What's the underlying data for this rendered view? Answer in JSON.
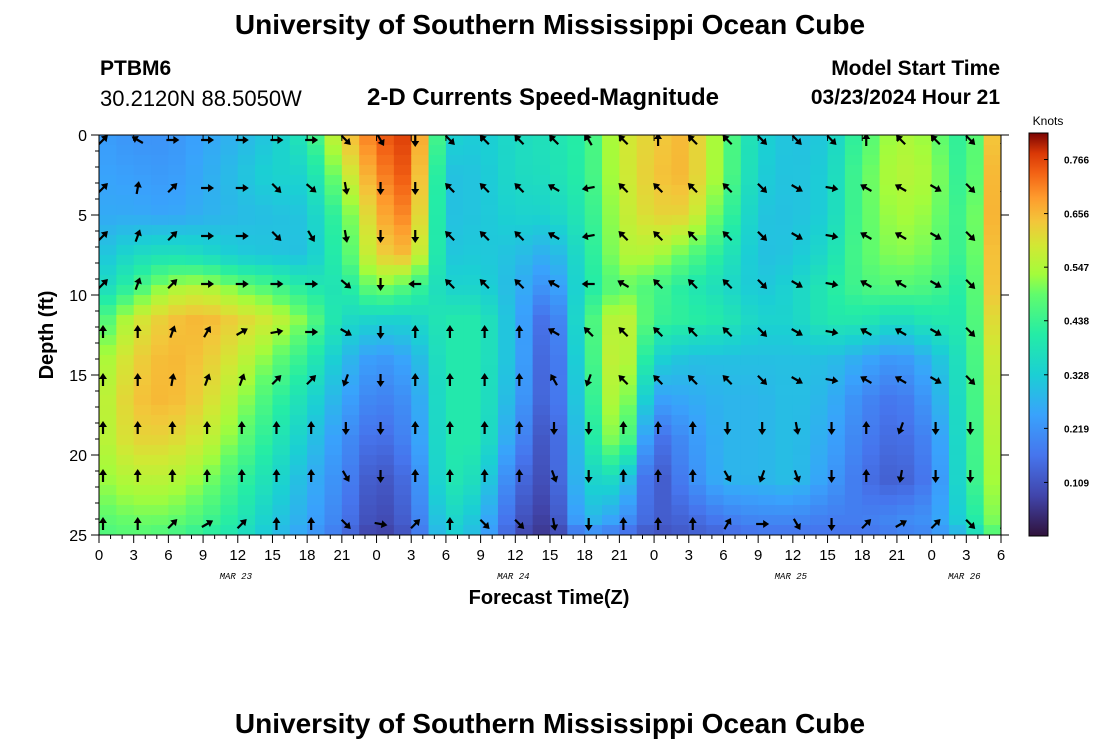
{
  "header": {
    "title": "University of Southern Mississippi Ocean Cube",
    "station": "PTBM6",
    "coordinates": "30.2120N  88.5050W",
    "subtitle": "2-D Currents Speed-Magnitude",
    "model_start_label": "Model Start Time",
    "model_start_value": "03/23/2024 Hour 21"
  },
  "footer": {
    "title": "University of Southern Mississippi Ocean Cube"
  },
  "chart_data": {
    "type": "heatmap",
    "title": "2-D Currents Speed-Magnitude",
    "xlabel": "Forecast Time(Z)",
    "ylabel": "Depth (ft)",
    "x_ticks": [
      "0",
      "3",
      "6",
      "9",
      "12",
      "15",
      "18",
      "21",
      "0",
      "3",
      "6",
      "9",
      "12",
      "15",
      "18",
      "21",
      "0",
      "3",
      "6",
      "9",
      "12",
      "15",
      "18",
      "21",
      "0",
      "3",
      "6"
    ],
    "x_range_hours": [
      0,
      78
    ],
    "date_labels": [
      {
        "label": "MAR 23",
        "hour": 12
      },
      {
        "label": "MAR 24",
        "hour": 36
      },
      {
        "label": "MAR 25",
        "hour": 60
      },
      {
        "label": "MAR 26",
        "hour": 75
      }
    ],
    "y_ticks": [
      0,
      5,
      10,
      15,
      20,
      25
    ],
    "ylim": [
      0,
      25
    ],
    "colorbar": {
      "unit": "Knots",
      "range": [
        0.0,
        0.82
      ],
      "ticks": [
        "0.766",
        "0.656",
        "0.547",
        "0.438",
        "0.328",
        "0.219",
        "0.109"
      ],
      "tick_values": [
        0.766,
        0.656,
        0.547,
        0.438,
        0.328,
        0.219,
        0.109
      ]
    },
    "speed_field": {
      "note": "Speed magnitude (knots) sampled every 3 hours (cols, hour 0..78) and at depth ft (rows)",
      "depths": [
        0,
        2.5,
        5,
        7.5,
        9.5,
        11.5,
        14,
        16.5,
        19,
        21.5,
        24,
        25
      ],
      "hours": [
        0,
        3,
        6,
        9,
        12,
        15,
        18,
        21,
        24,
        27,
        30,
        33,
        36,
        39,
        42,
        45,
        48,
        51,
        54,
        57,
        60,
        63,
        66,
        69,
        72,
        75,
        78
      ],
      "values": [
        [
          0.24,
          0.22,
          0.22,
          0.25,
          0.28,
          0.32,
          0.4,
          0.62,
          0.74,
          0.78,
          0.34,
          0.32,
          0.36,
          0.38,
          0.42,
          0.58,
          0.63,
          0.66,
          0.5,
          0.34,
          0.3,
          0.32,
          0.46,
          0.55,
          0.52,
          0.4,
          0.72
        ],
        [
          0.25,
          0.24,
          0.23,
          0.26,
          0.3,
          0.34,
          0.34,
          0.55,
          0.7,
          0.76,
          0.3,
          0.31,
          0.36,
          0.37,
          0.42,
          0.57,
          0.64,
          0.66,
          0.5,
          0.33,
          0.3,
          0.33,
          0.48,
          0.56,
          0.54,
          0.4,
          0.74
        ],
        [
          0.26,
          0.26,
          0.25,
          0.27,
          0.29,
          0.3,
          0.31,
          0.46,
          0.66,
          0.72,
          0.3,
          0.31,
          0.34,
          0.34,
          0.4,
          0.56,
          0.62,
          0.62,
          0.46,
          0.31,
          0.3,
          0.33,
          0.48,
          0.54,
          0.52,
          0.42,
          0.74
        ],
        [
          0.3,
          0.36,
          0.38,
          0.36,
          0.32,
          0.31,
          0.3,
          0.44,
          0.62,
          0.66,
          0.31,
          0.32,
          0.3,
          0.26,
          0.38,
          0.55,
          0.55,
          0.48,
          0.4,
          0.3,
          0.31,
          0.36,
          0.48,
          0.52,
          0.5,
          0.42,
          0.72
        ],
        [
          0.34,
          0.44,
          0.54,
          0.56,
          0.5,
          0.46,
          0.4,
          0.38,
          0.52,
          0.46,
          0.34,
          0.34,
          0.28,
          0.2,
          0.38,
          0.5,
          0.46,
          0.4,
          0.36,
          0.31,
          0.34,
          0.4,
          0.46,
          0.48,
          0.46,
          0.4,
          0.72
        ],
        [
          0.44,
          0.58,
          0.64,
          0.66,
          0.62,
          0.58,
          0.5,
          0.36,
          0.34,
          0.34,
          0.4,
          0.4,
          0.28,
          0.12,
          0.42,
          0.6,
          0.44,
          0.42,
          0.4,
          0.34,
          0.34,
          0.4,
          0.4,
          0.36,
          0.4,
          0.4,
          0.68
        ],
        [
          0.52,
          0.62,
          0.66,
          0.64,
          0.58,
          0.5,
          0.42,
          0.3,
          0.22,
          0.26,
          0.4,
          0.4,
          0.28,
          0.1,
          0.4,
          0.62,
          0.34,
          0.3,
          0.3,
          0.3,
          0.3,
          0.3,
          0.26,
          0.22,
          0.28,
          0.4,
          0.64
        ],
        [
          0.54,
          0.64,
          0.66,
          0.62,
          0.54,
          0.44,
          0.36,
          0.26,
          0.18,
          0.22,
          0.4,
          0.4,
          0.26,
          0.1,
          0.38,
          0.6,
          0.24,
          0.26,
          0.28,
          0.28,
          0.3,
          0.28,
          0.2,
          0.16,
          0.24,
          0.4,
          0.62
        ],
        [
          0.54,
          0.62,
          0.62,
          0.58,
          0.5,
          0.4,
          0.32,
          0.22,
          0.14,
          0.2,
          0.4,
          0.4,
          0.22,
          0.08,
          0.36,
          0.56,
          0.14,
          0.22,
          0.28,
          0.28,
          0.3,
          0.26,
          0.18,
          0.14,
          0.2,
          0.4,
          0.6
        ],
        [
          0.52,
          0.56,
          0.56,
          0.52,
          0.44,
          0.36,
          0.28,
          0.2,
          0.1,
          0.16,
          0.4,
          0.36,
          0.16,
          0.08,
          0.34,
          0.36,
          0.1,
          0.2,
          0.28,
          0.28,
          0.3,
          0.24,
          0.16,
          0.12,
          0.18,
          0.4,
          0.58
        ],
        [
          0.48,
          0.5,
          0.5,
          0.46,
          0.4,
          0.32,
          0.26,
          0.18,
          0.08,
          0.14,
          0.36,
          0.3,
          0.12,
          0.06,
          0.3,
          0.24,
          0.12,
          0.14,
          0.18,
          0.2,
          0.2,
          0.18,
          0.18,
          0.2,
          0.22,
          0.36,
          0.56
        ],
        [
          0.46,
          0.48,
          0.46,
          0.42,
          0.38,
          0.3,
          0.24,
          0.16,
          0.06,
          0.12,
          0.34,
          0.28,
          0.1,
          0.05,
          0.2,
          0.16,
          0.1,
          0.12,
          0.14,
          0.16,
          0.16,
          0.16,
          0.16,
          0.18,
          0.2,
          0.3,
          0.52
        ]
      ]
    },
    "vectors": {
      "note": "Current direction arrows, degrees clockwise from north (up), per hour column and depth row",
      "depths": [
        0,
        3,
        6,
        9,
        12,
        15,
        18,
        21,
        24
      ],
      "hours": [
        0,
        3,
        6,
        9,
        12,
        15,
        18,
        21,
        24,
        27,
        30,
        33,
        36,
        39,
        42,
        45,
        48,
        51,
        54,
        57,
        60,
        63,
        66,
        69,
        72,
        75,
        78
      ],
      "directions": [
        [
          45,
          300,
          90,
          90,
          90,
          90,
          90,
          135,
          150,
          180,
          135,
          315,
          315,
          315,
          330,
          315,
          0,
          315,
          315,
          135,
          135,
          135,
          0,
          315,
          315,
          135,
          45
        ],
        [
          45,
          10,
          45,
          90,
          90,
          135,
          130,
          170,
          180,
          180,
          315,
          315,
          315,
          300,
          260,
          315,
          315,
          315,
          315,
          135,
          120,
          100,
          300,
          300,
          120,
          135,
          45
        ],
        [
          45,
          20,
          45,
          90,
          90,
          135,
          150,
          170,
          180,
          180,
          315,
          315,
          315,
          300,
          260,
          315,
          315,
          315,
          315,
          135,
          120,
          100,
          300,
          300,
          120,
          135,
          180
        ],
        [
          45,
          20,
          45,
          90,
          90,
          90,
          90,
          130,
          180,
          270,
          315,
          315,
          315,
          300,
          270,
          300,
          315,
          315,
          315,
          135,
          120,
          100,
          300,
          300,
          120,
          135,
          180
        ],
        [
          0,
          0,
          20,
          30,
          60,
          80,
          90,
          120,
          180,
          0,
          0,
          0,
          0,
          300,
          315,
          315,
          315,
          315,
          315,
          135,
          120,
          100,
          300,
          300,
          120,
          135,
          180
        ],
        [
          0,
          0,
          10,
          20,
          20,
          45,
          45,
          200,
          180,
          0,
          0,
          0,
          0,
          330,
          200,
          315,
          315,
          315,
          315,
          135,
          120,
          100,
          300,
          300,
          120,
          135,
          180
        ],
        [
          0,
          0,
          0,
          0,
          0,
          0,
          0,
          180,
          180,
          0,
          0,
          0,
          0,
          180,
          180,
          0,
          0,
          0,
          180,
          180,
          170,
          180,
          0,
          200,
          180,
          180,
          180
        ],
        [
          0,
          0,
          0,
          0,
          0,
          0,
          0,
          150,
          180,
          0,
          0,
          0,
          0,
          160,
          180,
          0,
          0,
          0,
          150,
          200,
          160,
          180,
          0,
          190,
          180,
          180,
          180
        ],
        [
          0,
          0,
          45,
          60,
          45,
          0,
          0,
          135,
          100,
          45,
          0,
          135,
          135,
          170,
          180,
          0,
          0,
          0,
          30,
          90,
          150,
          180,
          45,
          60,
          45,
          135,
          225
        ]
      ]
    }
  }
}
